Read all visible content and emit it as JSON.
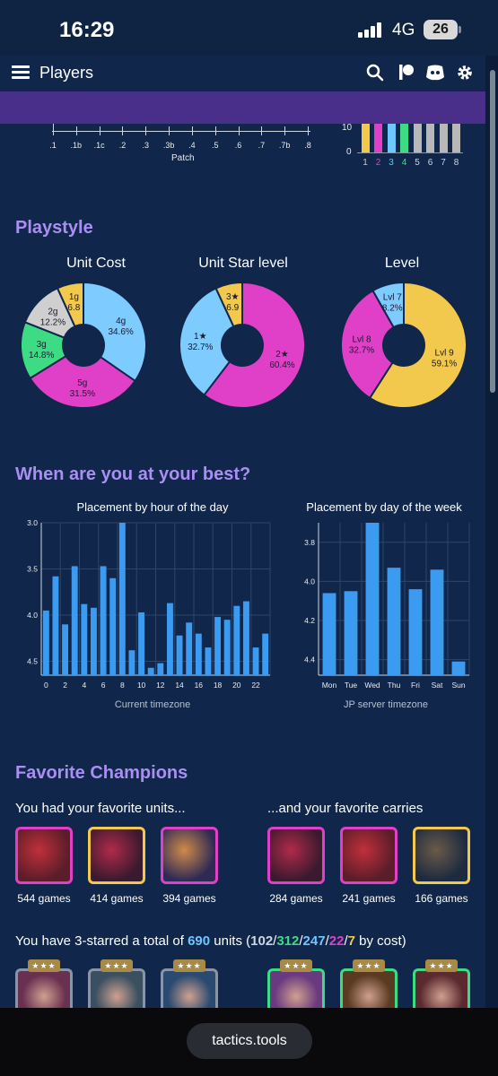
{
  "status": {
    "time": "16:29",
    "network": "4G",
    "battery": "26"
  },
  "app_bar": {
    "title": "Players"
  },
  "patch_chart": {
    "axis_labels": [
      ".1",
      ".1b",
      ".1c",
      ".2",
      ".3",
      ".3b",
      ".4",
      ".5",
      ".6",
      ".7",
      ".7b",
      ".8"
    ],
    "xlabel": "Patch"
  },
  "level_mini_chart": {
    "y_ticks": [
      "10",
      "0"
    ],
    "labels": [
      "1",
      "2",
      "3",
      "4",
      "5",
      "6",
      "7",
      "8"
    ],
    "label_colors": [
      "#f2c94c",
      "#e040c8",
      "#4fd1f5",
      "#3ddc84",
      "#cfd6e0",
      "#cfd6e0",
      "#cfd6e0",
      "#cfd6e0"
    ],
    "bar_colors": [
      "#f2c94c",
      "#e040c8",
      "#6cc8ff",
      "#3ddc84",
      "#b8b8b8",
      "#b8b8b8",
      "#b8b8b8",
      "#b8b8b8"
    ]
  },
  "playstyle": {
    "heading": "Playstyle",
    "unit_cost": {
      "title": "Unit Cost",
      "slices": [
        {
          "label": "4g",
          "pct": "34.6%",
          "value": 34.6,
          "color": "#7ecbff"
        },
        {
          "label": "5g",
          "pct": "31.5%",
          "value": 31.5,
          "color": "#e040c8"
        },
        {
          "label": "3g",
          "pct": "14.8%",
          "value": 14.8,
          "color": "#3ddc84"
        },
        {
          "label": "2g",
          "pct": "12.2%",
          "value": 12.2,
          "color": "#cfcfcf"
        },
        {
          "label": "1g",
          "pct": "6.8",
          "value": 6.8,
          "color": "#f2c94c"
        }
      ]
    },
    "unit_star": {
      "title": "Unit Star level",
      "slices": [
        {
          "label": "2★",
          "pct": "60.4%",
          "value": 60.4,
          "color": "#e040c8"
        },
        {
          "label": "1★",
          "pct": "32.7%",
          "value": 32.7,
          "color": "#7ecbff"
        },
        {
          "label": "3★",
          "pct": "6.9",
          "value": 6.9,
          "color": "#f2c94c"
        }
      ]
    },
    "level": {
      "title": "Level",
      "slices": [
        {
          "label": "Lvl 9",
          "pct": "59.1%",
          "value": 59.1,
          "color": "#f2c94c"
        },
        {
          "label": "Lvl 8",
          "pct": "32.7%",
          "value": 32.7,
          "color": "#e040c8"
        },
        {
          "label": "Lvl 7",
          "pct": "8.2%",
          "value": 8.2,
          "color": "#7ecbff"
        }
      ]
    }
  },
  "best": {
    "heading": "When are you at your best?",
    "hour_title": "Placement by hour of the day",
    "hour_caption": "Current timezone",
    "day_title": "Placement by day of the week",
    "day_caption": "JP server timezone"
  },
  "chart_data": [
    {
      "type": "bar",
      "title": "Placement by hour of the day",
      "xlabel": "Current timezone",
      "ylabel": "",
      "ylim": [
        4.65,
        3.0
      ],
      "y_ticks": [
        "3.0",
        "3.5",
        "4.0",
        "4.5"
      ],
      "x_ticks": [
        "0",
        "2",
        "4",
        "6",
        "8",
        "10",
        "12",
        "14",
        "16",
        "18",
        "20",
        "22"
      ],
      "categories": [
        "0",
        "1",
        "2",
        "3",
        "4",
        "5",
        "6",
        "7",
        "8",
        "9",
        "10",
        "11",
        "12",
        "13",
        "14",
        "15",
        "16",
        "17",
        "18",
        "19",
        "20",
        "21",
        "22",
        "23"
      ],
      "values": [
        3.95,
        3.58,
        4.1,
        3.47,
        3.88,
        3.92,
        3.47,
        3.6,
        3.0,
        4.38,
        3.97,
        4.57,
        4.52,
        3.87,
        4.22,
        4.08,
        4.2,
        4.35,
        4.02,
        4.05,
        3.9,
        3.85,
        4.35,
        4.2
      ]
    },
    {
      "type": "bar",
      "title": "Placement by day of the week",
      "xlabel": "JP server timezone",
      "ylabel": "",
      "ylim": [
        4.48,
        3.7
      ],
      "y_ticks": [
        "3.8",
        "4.0",
        "4.2",
        "4.4"
      ],
      "categories": [
        "Mon",
        "Tue",
        "Wed",
        "Thu",
        "Fri",
        "Sat",
        "Sun"
      ],
      "values": [
        4.06,
        4.05,
        3.7,
        3.93,
        4.04,
        3.94,
        4.41
      ]
    }
  ],
  "favorites": {
    "heading": "Favorite Champions",
    "units_heading": "You had your favorite units...",
    "carries_heading": "...and your favorite carries",
    "units": [
      {
        "games": "544 games",
        "border": "#e040c8",
        "bg": "#5a1d2a",
        "accent": "#c0303a"
      },
      {
        "games": "414 games",
        "border": "#f2c94c",
        "bg": "#3a1a2e",
        "accent": "#b02a4a"
      },
      {
        "games": "394 games",
        "border": "#e040c8",
        "bg": "#2d2a55",
        "accent": "#d08a4a"
      }
    ],
    "carries": [
      {
        "games": "284 games",
        "border": "#e040c8",
        "bg": "#3a1a2e",
        "accent": "#b02a4a"
      },
      {
        "games": "241 games",
        "border": "#e040c8",
        "bg": "#5a1d2a",
        "accent": "#c0303a"
      },
      {
        "games": "166 games",
        "border": "#f2c94c",
        "bg": "#1d2a40",
        "accent": "#6b5a48"
      }
    ],
    "starred": {
      "prefix": "You have 3-starred a total of",
      "total": "690",
      "mid": "units (",
      "c1": "102",
      "c2": "312",
      "c3": "247",
      "c4": "22",
      "c5": "7",
      "suffix": "by cost)",
      "colors": {
        "total": "#6cc8ff",
        "c1": "#cfd6e0",
        "c2": "#3ddc84",
        "c3": "#6cc8ff",
        "c4": "#e040c8",
        "c5": "#f2c94c"
      }
    },
    "star_badge": "★★★"
  },
  "browser": {
    "url": "tactics.tools"
  }
}
